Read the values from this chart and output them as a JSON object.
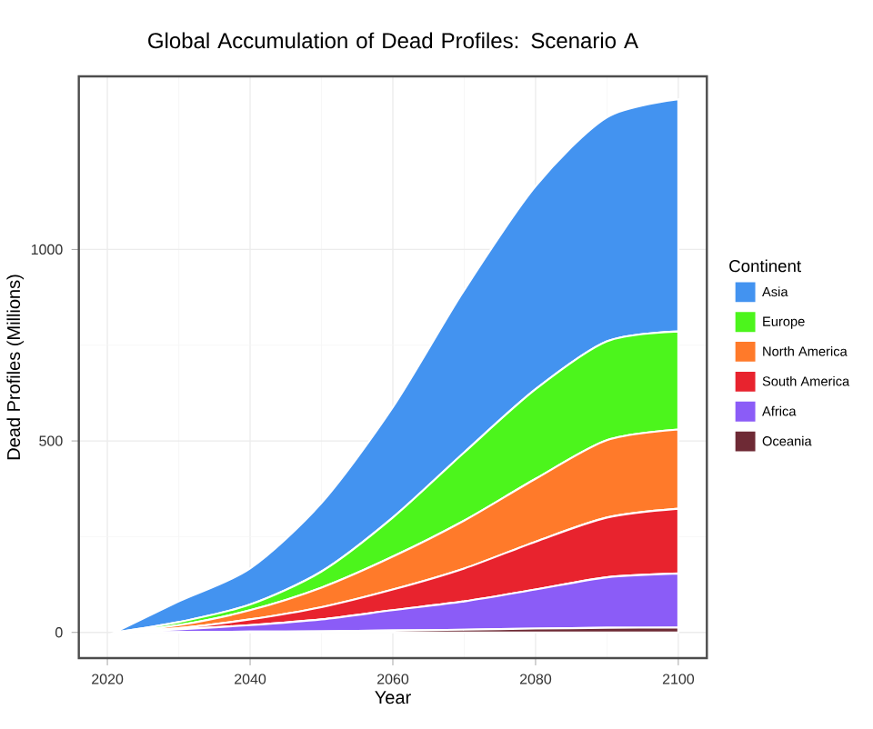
{
  "chart_data": {
    "type": "area",
    "title": "Global Accumulation of Dead Profiles: Scenario A",
    "xlabel": "Year",
    "ylabel": "Dead Profiles (Millions)",
    "legend_title": "Continent",
    "legend": "right",
    "grid": true,
    "stacked": true,
    "x": [
      2021,
      2030,
      2040,
      2050,
      2060,
      2070,
      2080,
      2090,
      2100
    ],
    "xlim": [
      2016,
      2104
    ],
    "ylim": [
      -67,
      1452
    ],
    "xticks": [
      2020,
      2040,
      2060,
      2080,
      2100
    ],
    "yticks": [
      0,
      500,
      1000
    ],
    "series": [
      {
        "name": "Oceania",
        "color": "#6e2a35",
        "values": [
          0,
          1,
          2,
          3,
          5,
          7,
          10,
          12,
          13
        ]
      },
      {
        "name": "Africa",
        "color": "#8b5cf7",
        "values": [
          0,
          7,
          17,
          31,
          53,
          74,
          102,
          132,
          141
        ]
      },
      {
        "name": "South America",
        "color": "#e8232e",
        "values": [
          0,
          3,
          15,
          32,
          54,
          86,
          125,
          156,
          169
        ]
      },
      {
        "name": "North America",
        "color": "#ff7a2a",
        "values": [
          0,
          8,
          24,
          51,
          86,
          125,
          164,
          202,
          207
        ]
      },
      {
        "name": "Europe",
        "color": "#4cf51c",
        "values": [
          0,
          8,
          15,
          42,
          102,
          178,
          234,
          258,
          256
        ]
      },
      {
        "name": "Asia",
        "color": "#4393f0",
        "values": [
          0,
          54,
          94,
          179,
          288,
          424,
          530,
          585,
          606
        ]
      }
    ]
  }
}
